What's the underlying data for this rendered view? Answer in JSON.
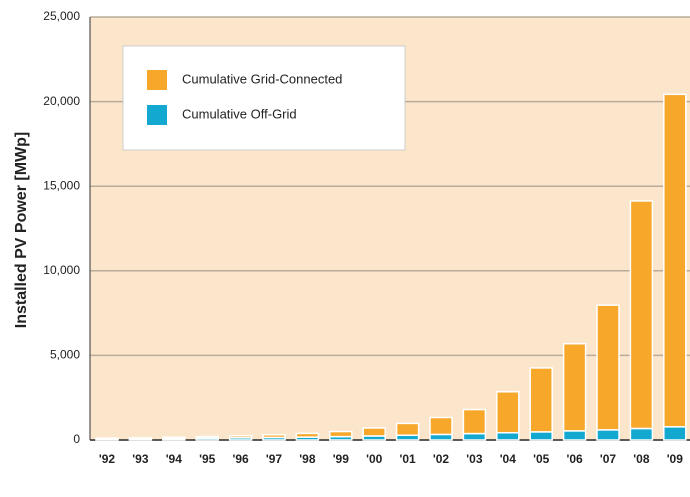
{
  "chart_data": {
    "type": "stacked_bar",
    "y_label": "Installed PV Power [MWp]",
    "categories": [
      "'92",
      "'93",
      "'94",
      "'95",
      "'96",
      "'97",
      "'98",
      "'99",
      "'00",
      "'01",
      "'02",
      "'03",
      "'04",
      "'05",
      "'06",
      "'07",
      "'08",
      "'09"
    ],
    "series": [
      {
        "name": "Cumulative Off-Grid",
        "color": "#13a8cf",
        "values": [
          70,
          80,
          90,
          110,
          130,
          150,
          170,
          200,
          240,
          280,
          330,
          380,
          430,
          480,
          540,
          600,
          680,
          780
        ]
      },
      {
        "name": "Cumulative Grid-Connected",
        "color": "#f7a82b",
        "values": [
          40,
          50,
          70,
          90,
          120,
          160,
          220,
          300,
          470,
          700,
          1000,
          1420,
          2420,
          3780,
          5150,
          7370,
          13450,
          19650
        ]
      }
    ],
    "legend_order": [
      "Cumulative Grid-Connected",
      "Cumulative Off-Grid"
    ],
    "ylim": [
      0,
      25000
    ],
    "yticks": [
      0,
      {
        "value": 5000,
        "label": "5,000"
      },
      {
        "value": 10000,
        "label": "10,000"
      },
      {
        "value": 15000,
        "label": "15,000"
      },
      {
        "value": 20000,
        "label": "20,000"
      },
      {
        "value": 25000,
        "label": "25,000"
      }
    ],
    "grid": true,
    "background": "#fce6cb",
    "legend": "upper left"
  }
}
